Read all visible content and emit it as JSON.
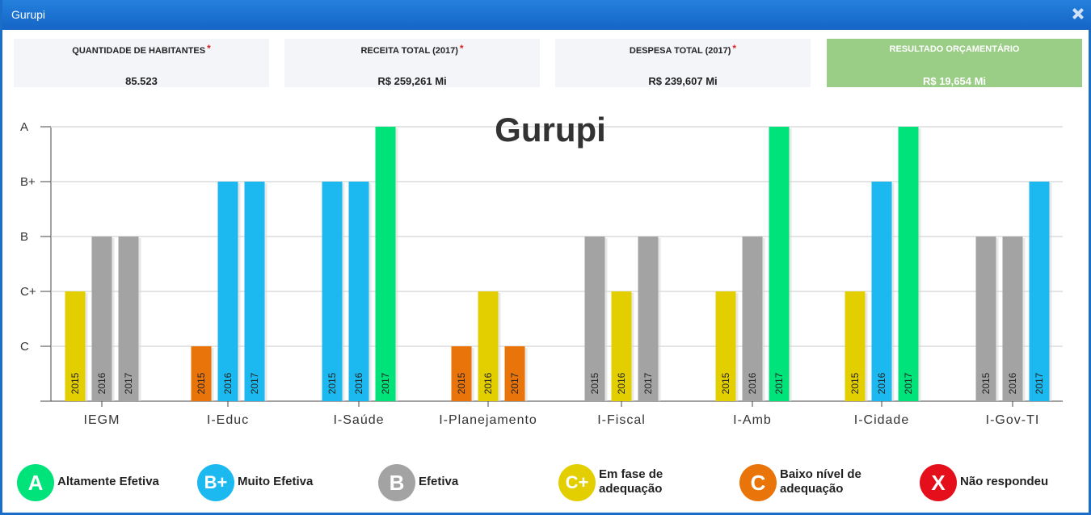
{
  "window": {
    "title": "Gurupi",
    "close_icon": "close-icon"
  },
  "cards": [
    {
      "label": "QUANTIDADE DE HABITANTES",
      "required": "*",
      "value": "85.523"
    },
    {
      "label": "RECEITA TOTAL (2017)",
      "required": "*",
      "value": "R$ 259,261 Mi"
    },
    {
      "label": "DESPESA TOTAL (2017)",
      "required": "*",
      "value": "R$ 239,607 Mi"
    },
    {
      "label": "RESULTADO ORÇAMENTÁRIO",
      "value": "R$ 19,654 Mi"
    }
  ],
  "colors": {
    "A": "#00e27a",
    "B+": "#1bb9ef",
    "B": "#a3a3a3",
    "C+": "#e3cf00",
    "C": "#e9740a",
    "X": "#e50f1c",
    "result_green": "#9acd85",
    "titlebar": "#1a6ec9"
  },
  "chart_data": {
    "type": "bar",
    "title": "Gurupi",
    "y_levels": [
      "C",
      "C+",
      "B",
      "B+",
      "A"
    ],
    "categories": [
      "IEGM",
      "I-Educ",
      "I-Saúde",
      "I-Planejamento",
      "I-Fiscal",
      "I-Amb",
      "I-Cidade",
      "I-Gov-TI"
    ],
    "series_years": [
      "2015",
      "2016",
      "2017"
    ],
    "values": [
      [
        "C+",
        "B",
        "B"
      ],
      [
        "C",
        "B+",
        "B+"
      ],
      [
        "B+",
        "B+",
        "A"
      ],
      [
        "C",
        "C+",
        "C"
      ],
      [
        "B",
        "C+",
        "B"
      ],
      [
        "C+",
        "B",
        "A"
      ],
      [
        "C+",
        "B+",
        "A"
      ],
      [
        "B",
        "B",
        "B+"
      ]
    ],
    "grid": true
  },
  "legend": [
    {
      "grade": "A",
      "text": "Altamente Efetiva"
    },
    {
      "grade": "B+",
      "text": "Muito Efetiva"
    },
    {
      "grade": "B",
      "text": "Efetiva"
    },
    {
      "grade": "C+",
      "text": "Em fase de\nadequação"
    },
    {
      "grade": "C",
      "text": "Baixo nível de\nadequação"
    },
    {
      "grade": "X",
      "text": "Não respondeu"
    }
  ]
}
